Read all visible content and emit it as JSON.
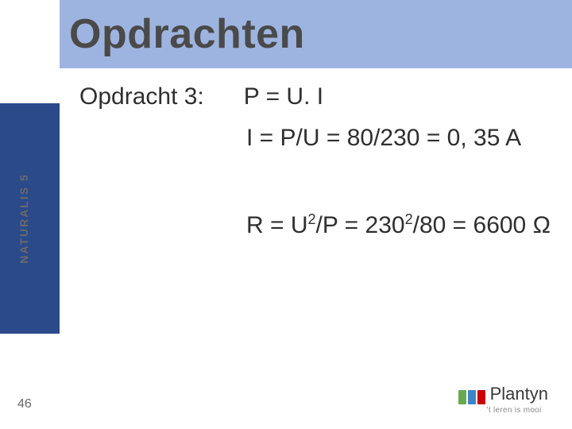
{
  "colors": {
    "title_band_bg": "#9eb4e0",
    "title_text": "#4a4a4a",
    "side_block_bg": "#2a4a8a",
    "side_label_color": "#6a6a6a",
    "body_text": "#2f2f2f",
    "page_num_color": "#6a6a6a",
    "logo_swatch1": "#6aa84f",
    "logo_swatch2": "#3d85c6",
    "logo_swatch3": "#cc0000",
    "logo_name_color": "#3a3a3a",
    "logo_tag_color": "#8a8a8a"
  },
  "title": "Opdrachten",
  "sidebar_label": "NATURALIS 5",
  "exercise": {
    "label": "Opdracht 3:",
    "line1": "P = U. I",
    "line2": "I = P/U = 80/230 = 0, 35 A",
    "line3_prefix": "R = U",
    "line3_sup1": "2",
    "line3_mid": "/P = 230",
    "line3_sup2": "2",
    "line3_suffix": "/80 = 6600 Ω"
  },
  "page_number": "46",
  "logo": {
    "name": "Plantyn",
    "tagline": "'t leren is mooi"
  }
}
